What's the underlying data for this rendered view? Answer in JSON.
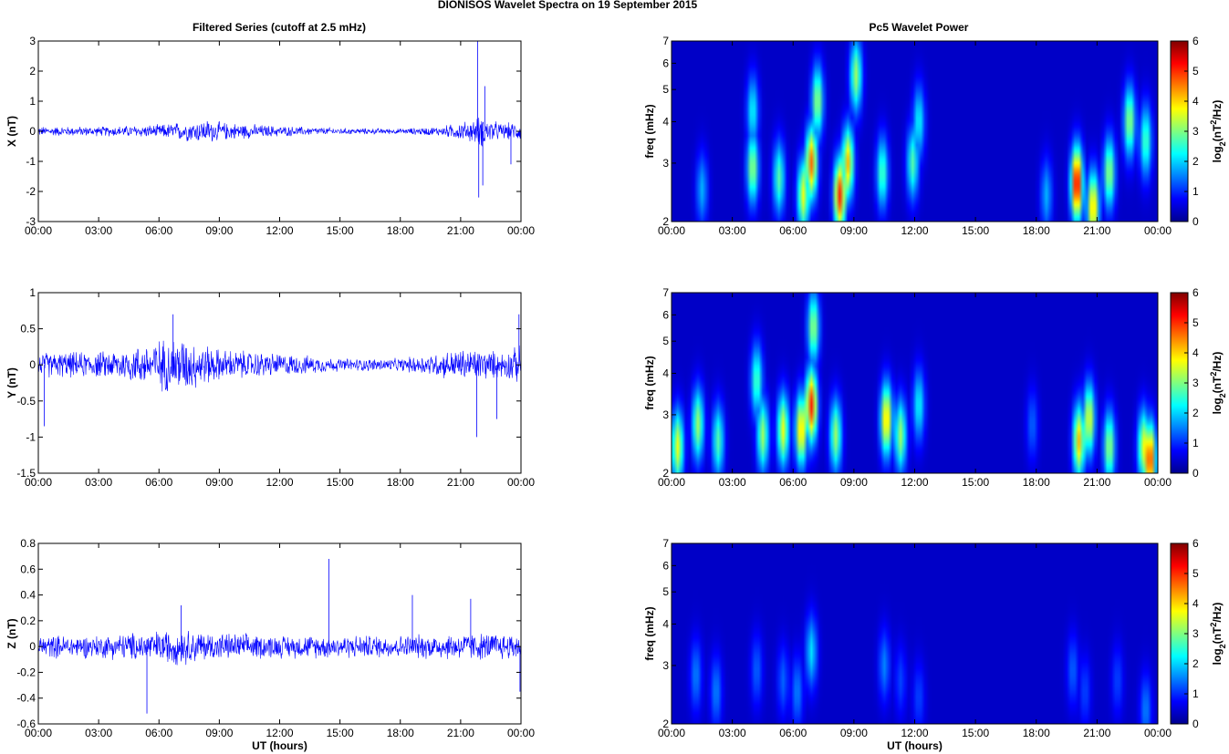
{
  "figure": {
    "suptitle": "DIONISOS Wavelet Spectra on 19 September 2015",
    "left_title": "Filtered Series (cutoff at 2.5 mHz)",
    "right_title": "Pc5 Wavelet Power",
    "xlabel": "UT (hours)",
    "x_tick_labels": [
      "00:00",
      "03:00",
      "06:00",
      "09:00",
      "12:00",
      "15:00",
      "18:00",
      "21:00",
      "00:00"
    ],
    "freq_label": "freq (mHz)",
    "colorbar_label": "log2(nT2/Hz)",
    "colorbar_ticks": [
      0,
      1,
      2,
      3,
      4,
      5,
      6
    ]
  },
  "chart_data": [
    {
      "type": "line",
      "ylabel": "X (nT)",
      "xlim": [
        0,
        24
      ],
      "ylim": [
        -3,
        3
      ],
      "yticks": [
        -3,
        -2,
        -1,
        0,
        1,
        2,
        3
      ],
      "color": "#0000ff",
      "envelope_hours": [
        0,
        3,
        6,
        7,
        8.5,
        9,
        12,
        15,
        18,
        20,
        21,
        21.5,
        22,
        23,
        24
      ],
      "envelope_amplitude": [
        0.18,
        0.18,
        0.25,
        0.35,
        0.45,
        0.35,
        0.2,
        0.12,
        0.1,
        0.18,
        0.35,
        0.4,
        0.6,
        0.3,
        0.35
      ],
      "spikes": [
        [
          21.85,
          3.0
        ],
        [
          21.9,
          -2.2
        ],
        [
          22.1,
          -1.8
        ],
        [
          22.2,
          1.5
        ],
        [
          23.5,
          -1.1
        ]
      ]
    },
    {
      "type": "line",
      "ylabel": "Y (nT)",
      "xlim": [
        0,
        24
      ],
      "ylim": [
        -1.5,
        1
      ],
      "yticks": [
        -1.5,
        -1,
        -0.5,
        0,
        0.5,
        1
      ],
      "color": "#0000ff",
      "envelope_hours": [
        0,
        3,
        5,
        6,
        7,
        8,
        9,
        12,
        15,
        18,
        20,
        21,
        22,
        23,
        24
      ],
      "envelope_amplitude": [
        0.2,
        0.2,
        0.3,
        0.4,
        0.45,
        0.35,
        0.25,
        0.18,
        0.1,
        0.1,
        0.2,
        0.25,
        0.25,
        0.2,
        0.3
      ],
      "spikes": [
        [
          0.3,
          -0.85
        ],
        [
          6.7,
          0.7
        ],
        [
          21.8,
          -1.0
        ],
        [
          23.9,
          0.7
        ],
        [
          22.8,
          -0.75
        ]
      ]
    },
    {
      "type": "line",
      "ylabel": "Z (nT)",
      "xlim": [
        0,
        24
      ],
      "ylim": [
        -0.6,
        0.8
      ],
      "yticks": [
        -0.6,
        -0.4,
        -0.2,
        0,
        0.2,
        0.4,
        0.6,
        0.8
      ],
      "color": "#0000ff",
      "envelope_hours": [
        0,
        3,
        6,
        7,
        9,
        12,
        15,
        18,
        21,
        24
      ],
      "envelope_amplitude": [
        0.1,
        0.1,
        0.14,
        0.16,
        0.12,
        0.1,
        0.1,
        0.1,
        0.12,
        0.12
      ],
      "spikes": [
        [
          5.4,
          -0.52
        ],
        [
          14.45,
          0.68
        ],
        [
          7.1,
          0.32
        ],
        [
          18.6,
          0.4
        ],
        [
          21.5,
          0.37
        ],
        [
          23.95,
          -0.35
        ]
      ]
    },
    {
      "type": "heatmap",
      "ylabel": "freq (mHz)",
      "xlim": [
        0,
        24
      ],
      "ylim": [
        2,
        7
      ],
      "yscale": "log",
      "yticks": [
        2,
        3,
        4,
        5,
        6,
        7
      ],
      "clim": [
        0,
        6
      ],
      "colormap": "jet",
      "blobs": [
        [
          1.5,
          2.5,
          1.5
        ],
        [
          4,
          2.9,
          3
        ],
        [
          4,
          4.3,
          2
        ],
        [
          5.3,
          2.7,
          2.5
        ],
        [
          6.5,
          2.4,
          3.5
        ],
        [
          6.9,
          3.0,
          4.5
        ],
        [
          7.2,
          4.6,
          3
        ],
        [
          8.3,
          2.4,
          5
        ],
        [
          8.7,
          3.0,
          4
        ],
        [
          9.1,
          5.5,
          3
        ],
        [
          10.4,
          2.8,
          2.5
        ],
        [
          11.9,
          3.0,
          2.5
        ],
        [
          12.2,
          4.0,
          2
        ],
        [
          18.5,
          2.4,
          1.5
        ],
        [
          20,
          2.6,
          5.5
        ],
        [
          20.8,
          2.2,
          4
        ],
        [
          21.6,
          2.8,
          3
        ],
        [
          22.6,
          4.0,
          3
        ],
        [
          23.4,
          3.5,
          2.5
        ]
      ]
    },
    {
      "type": "heatmap",
      "ylabel": "freq (mHz)",
      "xlim": [
        0,
        24
      ],
      "ylim": [
        2,
        7
      ],
      "yscale": "log",
      "yticks": [
        2,
        3,
        4,
        5,
        6,
        7
      ],
      "clim": [
        0,
        6
      ],
      "colormap": "jet",
      "blobs": [
        [
          0.3,
          2.4,
          3.5
        ],
        [
          1.3,
          2.8,
          3
        ],
        [
          2.3,
          2.5,
          2.5
        ],
        [
          4.2,
          3.8,
          2.5
        ],
        [
          4.5,
          2.6,
          3
        ],
        [
          5.5,
          2.7,
          3.5
        ],
        [
          6.4,
          2.7,
          4
        ],
        [
          6.9,
          3.2,
          5
        ],
        [
          7.0,
          5.5,
          3
        ],
        [
          8.1,
          2.6,
          3
        ],
        [
          10.6,
          2.9,
          4
        ],
        [
          11.3,
          2.6,
          3
        ],
        [
          12.2,
          3.2,
          2
        ],
        [
          17.8,
          2.8,
          1
        ],
        [
          20.1,
          2.5,
          4
        ],
        [
          20.6,
          2.9,
          3.5
        ],
        [
          21.6,
          2.4,
          3
        ],
        [
          23.3,
          2.4,
          3.5
        ],
        [
          23.6,
          2.2,
          5
        ]
      ]
    },
    {
      "type": "heatmap",
      "ylabel": "freq (mHz)",
      "xlim": [
        0,
        24
      ],
      "ylim": [
        2,
        7
      ],
      "yscale": "log",
      "yticks": [
        2,
        3,
        4,
        5,
        6,
        7
      ],
      "clim": [
        0,
        6
      ],
      "colormap": "jet",
      "blobs": [
        [
          1.2,
          2.8,
          1.2
        ],
        [
          2.2,
          2.5,
          1.2
        ],
        [
          4.2,
          2.9,
          1
        ],
        [
          5.5,
          2.7,
          1
        ],
        [
          6.2,
          2.5,
          1.2
        ],
        [
          6.9,
          3.3,
          1.8
        ],
        [
          10.5,
          3.0,
          1.2
        ],
        [
          11.3,
          2.7,
          0.8
        ],
        [
          12.2,
          2.4,
          0.8
        ],
        [
          19.8,
          2.9,
          1
        ],
        [
          20.4,
          2.5,
          0.8
        ],
        [
          22.0,
          2.7,
          0.8
        ],
        [
          23.4,
          2.2,
          1.2
        ]
      ]
    }
  ]
}
